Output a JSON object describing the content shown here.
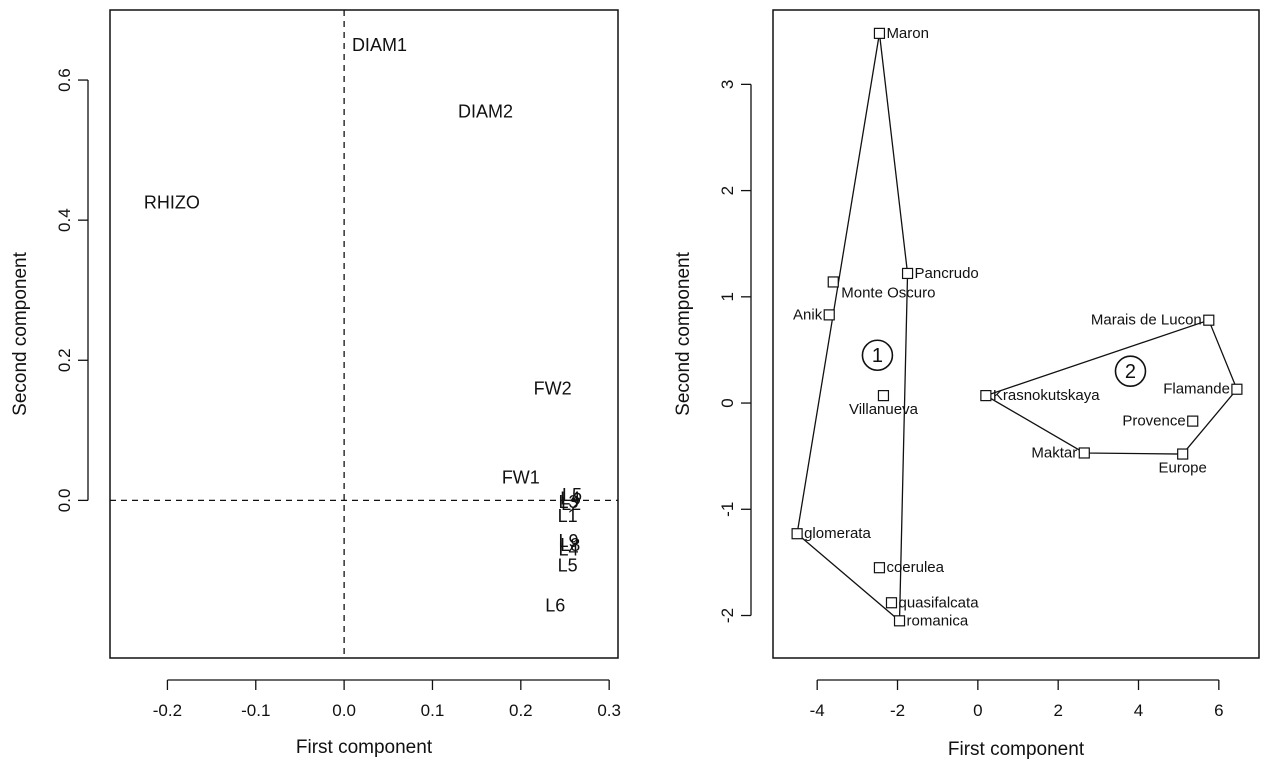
{
  "chart_data": [
    {
      "type": "scatter",
      "xlabel": "First component",
      "ylabel": "Second component",
      "xlim": [
        -0.265,
        0.31
      ],
      "ylim": [
        -0.225,
        0.7
      ],
      "xticks": [
        -0.2,
        -0.1,
        0.0,
        0.1,
        0.2,
        0.3
      ],
      "xtick_labels": [
        "-0.2",
        "-0.1",
        "0.0",
        "0.1",
        "0.2",
        "0.3"
      ],
      "yticks": [
        0.0,
        0.2,
        0.4,
        0.6
      ],
      "ytick_labels": [
        "0.0",
        "0.2",
        "0.4",
        "0.6"
      ],
      "reference_lines": {
        "x": 0,
        "y": 0,
        "style": "dashed"
      },
      "grid": false,
      "points": [
        {
          "label": "DIAM1",
          "x": 0.04,
          "y": 0.65
        },
        {
          "label": "DIAM2",
          "x": 0.16,
          "y": 0.555
        },
        {
          "label": "RHIZO",
          "x": -0.195,
          "y": 0.425
        },
        {
          "label": "FW2",
          "x": 0.236,
          "y": 0.16
        },
        {
          "label": "FW1",
          "x": 0.2,
          "y": 0.033
        },
        {
          "label": "L5",
          "x": 0.258,
          "y": 0.008
        },
        {
          "label": "L4",
          "x": 0.256,
          "y": 0.003
        },
        {
          "label": "L3",
          "x": 0.254,
          "y": -0.002
        },
        {
          "label": "L2",
          "x": 0.257,
          "y": -0.005
        },
        {
          "label": "L1",
          "x": 0.253,
          "y": -0.022
        },
        {
          "label": "L9",
          "x": 0.254,
          "y": -0.058
        },
        {
          "label": "L8",
          "x": 0.256,
          "y": -0.064
        },
        {
          "label": "L4",
          "x": 0.254,
          "y": -0.07
        },
        {
          "label": "L5",
          "x": 0.253,
          "y": -0.093
        },
        {
          "label": "L6",
          "x": 0.239,
          "y": -0.15
        }
      ]
    },
    {
      "type": "scatter",
      "xlabel": "First component",
      "ylabel": "Second component",
      "xlim": [
        -5.1,
        7.0
      ],
      "ylim": [
        -2.4,
        3.7
      ],
      "xticks": [
        -4,
        -2,
        0,
        2,
        4,
        6
      ],
      "xtick_labels": [
        "-4",
        "-2",
        "0",
        "2",
        "4",
        "6"
      ],
      "yticks": [
        -2,
        -1,
        0,
        1,
        2,
        3
      ],
      "ytick_labels": [
        "-2",
        "-1",
        "0",
        "1",
        "2",
        "3"
      ],
      "grid": false,
      "marker": "square",
      "points": [
        {
          "label": "Maron",
          "x": -2.45,
          "y": 3.48
        },
        {
          "label": "Pancrudo",
          "x": -1.75,
          "y": 1.22
        },
        {
          "label": "Monte Oscuro",
          "x": -3.6,
          "y": 1.14
        },
        {
          "label": "Anik",
          "x": -3.7,
          "y": 0.83
        },
        {
          "label": "Villanueva",
          "x": -2.35,
          "y": 0.07
        },
        {
          "label": "glomerata",
          "x": -4.5,
          "y": -1.23
        },
        {
          "label": "coerulea",
          "x": -2.45,
          "y": -1.55
        },
        {
          "label": "quasifalcata",
          "x": -2.15,
          "y": -1.88
        },
        {
          "label": "romanica",
          "x": -1.95,
          "y": -2.05
        },
        {
          "label": "Marais de Lucon",
          "x": 5.75,
          "y": 0.78
        },
        {
          "label": "Krasnokutskaya",
          "x": 0.2,
          "y": 0.07
        },
        {
          "label": "Flamande",
          "x": 6.45,
          "y": 0.13
        },
        {
          "label": "Provence",
          "x": 5.35,
          "y": -0.17
        },
        {
          "label": "Maktar",
          "x": 2.65,
          "y": -0.47
        },
        {
          "label": "Europe",
          "x": 5.1,
          "y": -0.48
        }
      ],
      "groups": [
        {
          "name": "1",
          "x": -2.5,
          "y": 0.45,
          "hull": [
            "Maron",
            "Pancrudo",
            "romanica",
            "glomerata"
          ]
        },
        {
          "name": "2",
          "x": 3.8,
          "y": 0.3,
          "hull": [
            "Marais de Lucon",
            "Flamande",
            "Europe",
            "Maktar",
            "Krasnokutskaya"
          ]
        }
      ]
    }
  ]
}
